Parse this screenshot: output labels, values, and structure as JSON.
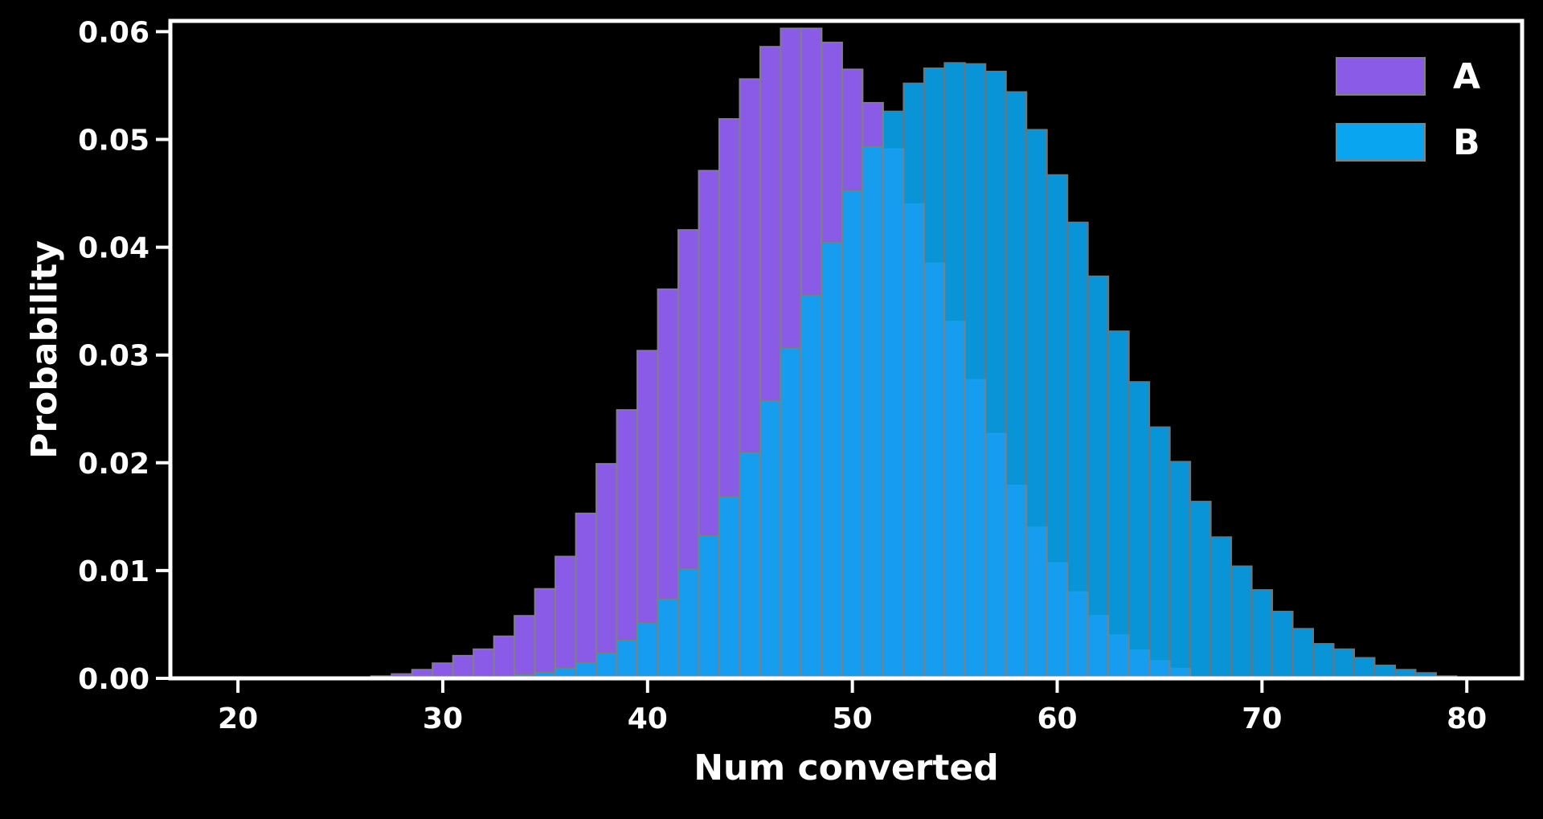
{
  "chart_data": {
    "type": "bar",
    "xlabel": "Num converted",
    "ylabel": "Probability",
    "xlim": [
      16.7,
      82.7
    ],
    "ylim": [
      0,
      0.061
    ],
    "x_ticks": [
      20,
      30,
      40,
      50,
      60,
      70,
      80
    ],
    "x_tick_labels": [
      "20",
      "30",
      "40",
      "50",
      "60",
      "70",
      "80"
    ],
    "y_ticks": [
      0.0,
      0.01,
      0.02,
      0.03,
      0.04,
      0.05,
      0.06
    ],
    "y_tick_labels": [
      "0.00",
      "0.01",
      "0.02",
      "0.03",
      "0.04",
      "0.05",
      "0.06"
    ],
    "legend_position": "top-right",
    "grid": false,
    "series": [
      {
        "name": "A",
        "color": "#8a5be6",
        "x": [
          26,
          27,
          28,
          29,
          30,
          31,
          32,
          33,
          34,
          35,
          36,
          37,
          38,
          39,
          40,
          41,
          42,
          43,
          44,
          45,
          46,
          47,
          48,
          49,
          50,
          51,
          52,
          53,
          54,
          55,
          56,
          57,
          58,
          59,
          60,
          61,
          62,
          63,
          64,
          65,
          66
        ],
        "values": [
          0.0001,
          0.0002,
          0.0004,
          0.0008,
          0.0014,
          0.0021,
          0.0027,
          0.0039,
          0.0058,
          0.0083,
          0.0113,
          0.0153,
          0.0199,
          0.0249,
          0.0304,
          0.0361,
          0.0416,
          0.0471,
          0.0519,
          0.0556,
          0.0586,
          0.0603,
          0.0603,
          0.059,
          0.0565,
          0.0534,
          0.0491,
          0.044,
          0.0385,
          0.0331,
          0.0277,
          0.0227,
          0.0179,
          0.014,
          0.0107,
          0.008,
          0.0058,
          0.004,
          0.0026,
          0.0016,
          0.0009
        ]
      },
      {
        "name": "B",
        "color": "#0aa5f0",
        "x": [
          34,
          35,
          36,
          37,
          38,
          39,
          40,
          41,
          42,
          43,
          44,
          45,
          46,
          47,
          48,
          49,
          50,
          51,
          52,
          53,
          54,
          55,
          56,
          57,
          58,
          59,
          60,
          61,
          62,
          63,
          64,
          65,
          66,
          67,
          68,
          69,
          70,
          71,
          72,
          73,
          74,
          75,
          76,
          77,
          78,
          79
        ],
        "values": [
          0.0003,
          0.0005,
          0.0009,
          0.0014,
          0.0023,
          0.0035,
          0.0051,
          0.0073,
          0.0101,
          0.0132,
          0.0168,
          0.0209,
          0.0257,
          0.0306,
          0.0355,
          0.0404,
          0.0452,
          0.0493,
          0.0526,
          0.0552,
          0.0566,
          0.0571,
          0.057,
          0.0563,
          0.0544,
          0.0509,
          0.0467,
          0.0423,
          0.0373,
          0.0322,
          0.0275,
          0.0233,
          0.0201,
          0.0164,
          0.0131,
          0.0104,
          0.0082,
          0.0062,
          0.0046,
          0.0032,
          0.0027,
          0.0019,
          0.0012,
          0.0008,
          0.0005,
          0.0002
        ]
      }
    ]
  }
}
